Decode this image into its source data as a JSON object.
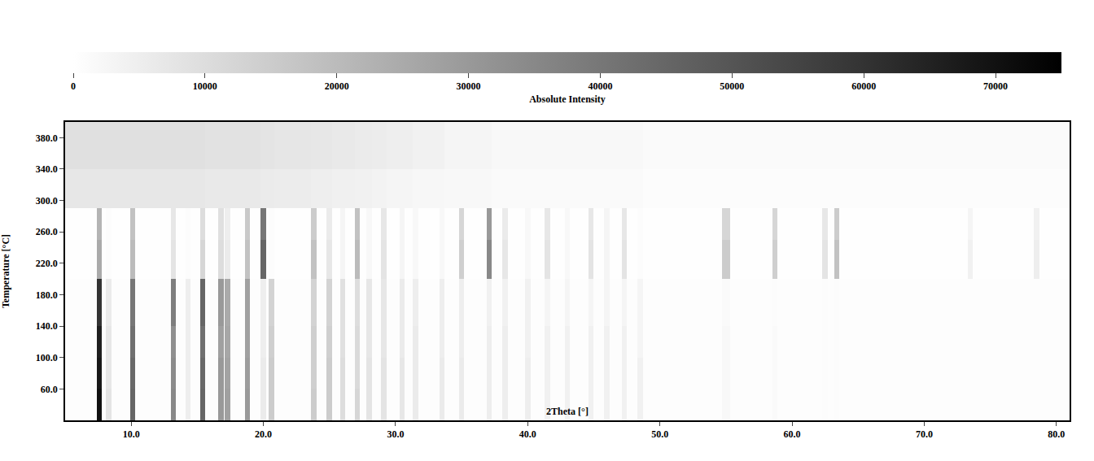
{
  "chart_data": {
    "type": "heatmap",
    "xlabel": "2Theta [°]",
    "ylabel": "Temperature [°C]",
    "colorbar_title": "Absolute Intensity",
    "xlim": [
      5,
      81
    ],
    "ylim": [
      20,
      400
    ],
    "xticks": [
      {
        "value": 10,
        "label": "10.0"
      },
      {
        "value": 20,
        "label": "20.0"
      },
      {
        "value": 30,
        "label": "30.0"
      },
      {
        "value": 40,
        "label": "40.0"
      },
      {
        "value": 50,
        "label": "50.0"
      },
      {
        "value": 60,
        "label": "60.0"
      },
      {
        "value": 70,
        "label": "70.0"
      },
      {
        "value": 80,
        "label": "80.0"
      }
    ],
    "yticks": [
      {
        "value": 60,
        "label": "60.0"
      },
      {
        "value": 100,
        "label": "100.0"
      },
      {
        "value": 140,
        "label": "140.0"
      },
      {
        "value": 180,
        "label": "180.0"
      },
      {
        "value": 220,
        "label": "220.0"
      },
      {
        "value": 260,
        "label": "260.0"
      },
      {
        "value": 300,
        "label": "300.0"
      },
      {
        "value": 340,
        "label": "340.0"
      },
      {
        "value": 380,
        "label": "380.0"
      }
    ],
    "zlim": [
      0,
      75000
    ],
    "zticks": [
      0,
      10000,
      20000,
      30000,
      40000,
      50000,
      60000,
      70000
    ],
    "x_edges": [
      5,
      7.4,
      7.8,
      8.1,
      8.5,
      9.9,
      10.3,
      13.0,
      13.4,
      14.1,
      14.5,
      15.2,
      15.6,
      16.6,
      17.0,
      17.1,
      17.5,
      18.6,
      19.0,
      19.8,
      20.2,
      20.4,
      20.8,
      23.6,
      24.0,
      24.8,
      25.2,
      25.8,
      26.2,
      26.9,
      27.3,
      27.8,
      28.2,
      28.9,
      29.3,
      30.3,
      30.7,
      31.3,
      31.7,
      33.3,
      33.7,
      34.8,
      35.2,
      36.9,
      37.3,
      38.1,
      38.5,
      39.8,
      40.2,
      41.3,
      41.7,
      42.8,
      43.2,
      44.6,
      45.0,
      45.8,
      46.2,
      47.1,
      47.5,
      48.3,
      48.7,
      54.7,
      55.3,
      58.5,
      58.9,
      62.3,
      62.7,
      63.2,
      63.6,
      73.3,
      73.7,
      78.3,
      78.7,
      81
    ],
    "y_edges": [
      20,
      60,
      100,
      140,
      200,
      250,
      290,
      340,
      400
    ],
    "z": [
      [
        500,
        70000,
        500,
        8000,
        500,
        45000,
        500,
        35000,
        500,
        5000,
        500,
        45000,
        500,
        30000,
        500,
        28000,
        500,
        30000,
        500,
        6000,
        500,
        15000,
        500,
        15000,
        500,
        15000,
        500,
        10000,
        500,
        12000,
        500,
        8000,
        500,
        8000,
        500,
        7000,
        500,
        6000,
        500,
        6000,
        500,
        6000,
        500,
        5000,
        500,
        5000,
        500,
        5000,
        500,
        4000,
        500,
        4000,
        500,
        4000,
        500,
        4000,
        500,
        4000,
        500,
        4000,
        500,
        2000,
        500,
        1500,
        500,
        1000,
        500,
        1000,
        500,
        500,
        500,
        500,
        500
      ],
      [
        500,
        68000,
        500,
        7000,
        500,
        44000,
        500,
        34000,
        500,
        5000,
        500,
        44000,
        500,
        30000,
        500,
        27000,
        500,
        29000,
        500,
        6000,
        500,
        15000,
        500,
        14000,
        500,
        15000,
        500,
        10000,
        500,
        11000,
        500,
        8000,
        500,
        8000,
        500,
        7000,
        500,
        6000,
        500,
        6000,
        500,
        6000,
        500,
        5000,
        500,
        5000,
        500,
        5000,
        500,
        4000,
        500,
        4000,
        500,
        4000,
        500,
        4000,
        500,
        4000,
        500,
        4000,
        500,
        2000,
        500,
        1500,
        500,
        1000,
        500,
        1000,
        500,
        500,
        500,
        500,
        500
      ],
      [
        500,
        66000,
        500,
        7000,
        500,
        42000,
        500,
        33000,
        500,
        5000,
        500,
        42000,
        500,
        28000,
        500,
        26000,
        500,
        28000,
        500,
        5000,
        500,
        14000,
        500,
        14000,
        500,
        14000,
        500,
        9000,
        500,
        11000,
        500,
        7000,
        500,
        7000,
        500,
        6000,
        500,
        6000,
        500,
        5000,
        500,
        5000,
        500,
        5000,
        500,
        5000,
        500,
        4000,
        500,
        4000,
        500,
        4000,
        500,
        4000,
        500,
        4000,
        500,
        4000,
        500,
        3000,
        500,
        2000,
        500,
        1500,
        500,
        1000,
        500,
        1000,
        500,
        500,
        500,
        500,
        500
      ],
      [
        500,
        60000,
        500,
        6000,
        500,
        40000,
        500,
        38000,
        500,
        5000,
        500,
        45000,
        500,
        30000,
        500,
        25000,
        500,
        28000,
        500,
        5000,
        500,
        13000,
        500,
        13000,
        500,
        13000,
        500,
        9000,
        500,
        10000,
        500,
        7000,
        500,
        7000,
        500,
        6000,
        500,
        5000,
        500,
        5000,
        500,
        5000,
        500,
        4000,
        500,
        4000,
        500,
        4000,
        500,
        3000,
        500,
        3000,
        500,
        3000,
        500,
        3000,
        500,
        3000,
        500,
        3000,
        500,
        1500,
        500,
        1000,
        500,
        1000,
        500,
        1000,
        500,
        500,
        500,
        500,
        500
      ],
      [
        300,
        25000,
        300,
        1000,
        300,
        20000,
        300,
        8000,
        300,
        1000,
        300,
        12000,
        300,
        10000,
        300,
        6000,
        300,
        18000,
        300,
        45000,
        300,
        1000,
        300,
        18000,
        300,
        7000,
        300,
        3000,
        300,
        20000,
        300,
        2000,
        300,
        8000,
        300,
        3000,
        300,
        2000,
        300,
        2000,
        300,
        14000,
        300,
        35000,
        300,
        7000,
        300,
        2000,
        300,
        8000,
        300,
        2000,
        300,
        8000,
        300,
        3000,
        300,
        8000,
        300,
        1000,
        300,
        15000,
        300,
        14000,
        300,
        8000,
        300,
        18000,
        300,
        4000,
        300,
        5000,
        300
      ],
      [
        300,
        22000,
        300,
        1000,
        300,
        18000,
        300,
        7000,
        300,
        1000,
        300,
        10000,
        300,
        9000,
        300,
        5000,
        300,
        16000,
        300,
        40000,
        300,
        1000,
        300,
        15000,
        300,
        6000,
        300,
        3000,
        300,
        18000,
        300,
        2000,
        300,
        7000,
        300,
        3000,
        300,
        2000,
        300,
        2000,
        300,
        12000,
        300,
        30000,
        300,
        6000,
        300,
        2000,
        300,
        7000,
        300,
        2000,
        300,
        7000,
        300,
        3000,
        300,
        7000,
        300,
        1000,
        300,
        12000,
        300,
        12000,
        300,
        7000,
        300,
        15000,
        300,
        3000,
        300,
        4000,
        300
      ],
      [
        7000,
        7000,
        7000,
        7000,
        7000,
        7000,
        7000,
        7000,
        7000,
        7000,
        7000,
        7000,
        6500,
        6500,
        6500,
        6500,
        6500,
        6500,
        6500,
        6000,
        6000,
        6000,
        5500,
        5000,
        5000,
        5000,
        4500,
        4500,
        4500,
        4000,
        4000,
        4000,
        3500,
        3500,
        3000,
        3000,
        3000,
        2500,
        2500,
        2500,
        2000,
        2000,
        2000,
        2000,
        1500,
        1500,
        1500,
        1500,
        1500,
        1500,
        1500,
        1500,
        1500,
        1500,
        1500,
        1500,
        1500,
        1500,
        1500,
        1500,
        1000,
        1000,
        1000,
        1000,
        1000,
        1000,
        1000,
        1000,
        1000,
        1000,
        1000,
        1000,
        1000
      ],
      [
        9000,
        9000,
        9000,
        9000,
        9000,
        9000,
        9000,
        9000,
        9000,
        9000,
        9000,
        9000,
        8500,
        8500,
        8500,
        8500,
        8500,
        8500,
        8500,
        8000,
        8000,
        8000,
        7500,
        7000,
        7000,
        7000,
        6500,
        6500,
        6500,
        6000,
        6000,
        6000,
        5500,
        5500,
        5000,
        5000,
        5000,
        4000,
        4000,
        4000,
        3000,
        3000,
        3000,
        3000,
        2000,
        2000,
        2000,
        2000,
        2000,
        2000,
        2000,
        2000,
        2000,
        2000,
        2000,
        2000,
        2000,
        2000,
        2000,
        2000,
        1500,
        1500,
        1500,
        1500,
        1500,
        1500,
        1500,
        1500,
        1500,
        1500,
        1500,
        1500,
        1500
      ]
    ]
  }
}
